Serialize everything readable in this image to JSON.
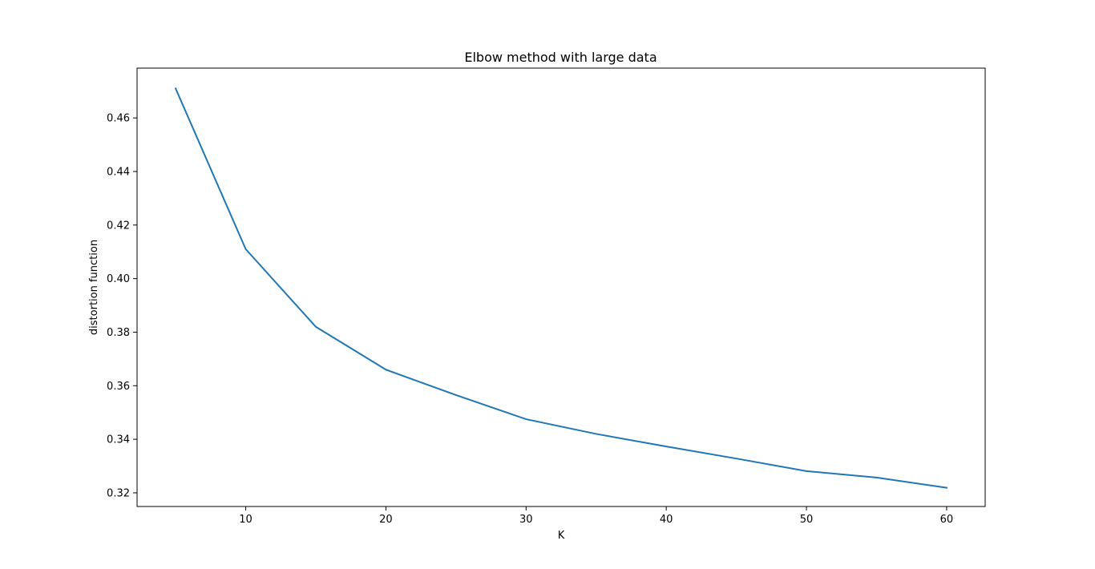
{
  "chart_data": {
    "type": "line",
    "title": "Elbow method with large data",
    "xlabel": "K",
    "ylabel": "distortion function",
    "xlim": [
      2.25,
      62.75
    ],
    "ylim": [
      0.3149,
      0.4786
    ],
    "xticks": [
      10,
      20,
      30,
      40,
      50,
      60
    ],
    "yticks": [
      0.32,
      0.34,
      0.36,
      0.38,
      0.4,
      0.42,
      0.44,
      0.46
    ],
    "ytick_labels": [
      "0.32",
      "0.34",
      "0.36",
      "0.38",
      "0.40",
      "0.42",
      "0.44",
      "0.46"
    ],
    "grid": false,
    "series": [
      {
        "color": "#1f77b4",
        "x": [
          5,
          10,
          15,
          20,
          25,
          30,
          35,
          40,
          45,
          50,
          55,
          60
        ],
        "y": [
          0.471,
          0.411,
          0.382,
          0.366,
          0.3565,
          0.3475,
          0.342,
          0.3373,
          0.3328,
          0.3281,
          0.3257,
          0.3219
        ]
      }
    ]
  }
}
